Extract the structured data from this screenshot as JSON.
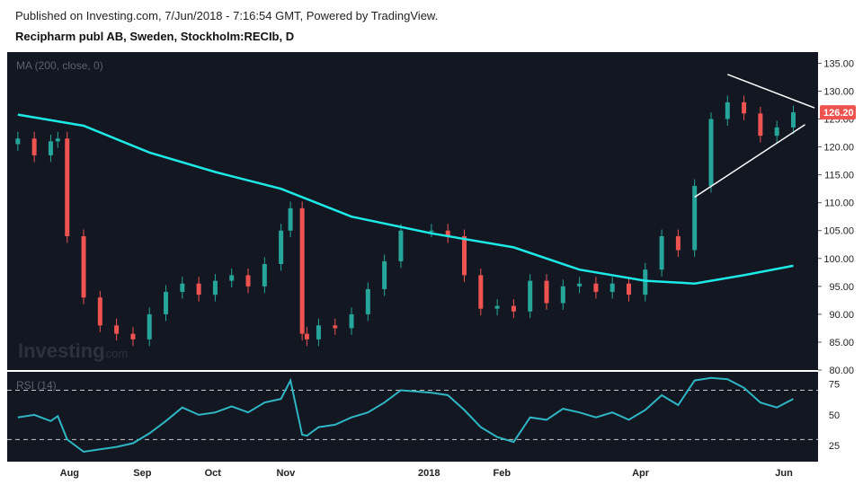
{
  "header": {
    "published": "Published on Investing.com, 7/Jun/2018 - 7:16:54 GMT, Powered by TradingView.",
    "title": "Recipharm publ AB, Sweden, Stockholm:RECIb, D"
  },
  "watermark": {
    "brand": "Investing",
    "suffix": ".com"
  },
  "colors": {
    "background": "#131722",
    "up": "#26a69a",
    "down": "#ef5350",
    "ma": "#1de9e6",
    "rsi": "#2fb6c4",
    "trendline": "#ffffff",
    "last_price_box": "#ef5350"
  },
  "chart_data": [
    {
      "type": "candlestick",
      "panel": "price",
      "legend": "MA (200, close, 0)",
      "ylim": [
        80,
        137
      ],
      "yticks": [
        "80.00",
        "85.00",
        "90.00",
        "95.00",
        "100.00",
        "105.00",
        "110.00",
        "115.00",
        "120.00",
        "125.00",
        "130.00",
        "135.00"
      ],
      "xticks": [
        "Aug",
        "Sep",
        "Oct",
        "Nov",
        "2018",
        "Feb",
        "Apr",
        "Jun"
      ],
      "last_price": "126.20",
      "series": [
        {
          "name": "Price",
          "x": [
            "Jul 10",
            "Jul 17",
            "Jul 24",
            "Jul 27",
            "Jul 31",
            "Aug 7",
            "Aug 14",
            "Aug 21",
            "Aug 28",
            "Sep 4",
            "Sep 11",
            "Sep 18",
            "Sep 25",
            "Oct 2",
            "Oct 9",
            "Oct 16",
            "Oct 23",
            "Oct 30",
            "Nov 3",
            "Nov 8",
            "Nov 10",
            "Nov 15",
            "Nov 22",
            "Nov 29",
            "Dec 6",
            "Dec 13",
            "Dec 20",
            "Jan 2",
            "Jan 9",
            "Jan 16",
            "Jan 23",
            "Jan 30",
            "Feb 6",
            "Feb 13",
            "Feb 20",
            "Feb 27",
            "Mar 6",
            "Mar 13",
            "Mar 20",
            "Mar 27",
            "Apr 3",
            "Apr 10",
            "Apr 17",
            "Apr 24",
            "May 1",
            "May 8",
            "May 15",
            "May 22",
            "May 29",
            "Jun 5"
          ],
          "close": [
            121.5,
            118.5,
            121.0,
            121.5,
            104.0,
            93.0,
            88.0,
            86.5,
            85.5,
            90.0,
            94.0,
            95.5,
            93.5,
            96.0,
            97.0,
            95.0,
            99.0,
            105.0,
            109.0,
            86.5,
            85.5,
            88.0,
            87.5,
            90.0,
            94.5,
            99.5,
            105.0,
            105.0,
            104.0,
            97.0,
            91.0,
            91.5,
            90.5,
            96.0,
            92.0,
            95.0,
            95.5,
            94.0,
            95.5,
            93.5,
            98.0,
            104.0,
            101.5,
            113.0,
            125.0,
            128.0,
            126.0,
            122.0,
            123.5,
            126.2
          ]
        },
        {
          "name": "MA (200, close, 0)",
          "x": [
            "Jul 10",
            "Aug 7",
            "Sep 4",
            "Oct 2",
            "Oct 30",
            "Nov 29",
            "Jan 2",
            "Feb 6",
            "Mar 6",
            "Apr 3",
            "Apr 24",
            "May 15",
            "Jun 5"
          ],
          "y": [
            125.8,
            123.8,
            119.0,
            115.5,
            112.5,
            107.5,
            104.5,
            102.0,
            98.0,
            96.0,
            95.5,
            97.0,
            98.7
          ]
        }
      ]
    },
    {
      "type": "line",
      "panel": "rsi",
      "legend": "RSI (14)",
      "ylim": [
        12,
        85
      ],
      "yticks": [
        "25",
        "50",
        "75"
      ],
      "reference_lines": [
        70,
        30
      ],
      "series": [
        {
          "name": "RSI (14)",
          "x": [
            "Jul 10",
            "Jul 17",
            "Jul 24",
            "Jul 27",
            "Jul 31",
            "Aug 7",
            "Aug 14",
            "Aug 21",
            "Aug 28",
            "Sep 4",
            "Sep 11",
            "Sep 18",
            "Sep 25",
            "Oct 2",
            "Oct 9",
            "Oct 16",
            "Oct 23",
            "Oct 30",
            "Nov 3",
            "Nov 8",
            "Nov 10",
            "Nov 15",
            "Nov 22",
            "Nov 29",
            "Dec 6",
            "Dec 13",
            "Dec 20",
            "Jan 2",
            "Jan 9",
            "Jan 16",
            "Jan 23",
            "Jan 30",
            "Feb 6",
            "Feb 13",
            "Feb 20",
            "Feb 27",
            "Mar 6",
            "Mar 13",
            "Mar 20",
            "Mar 27",
            "Apr 3",
            "Apr 10",
            "Apr 17",
            "Apr 24",
            "May 1",
            "May 8",
            "May 15",
            "May 22",
            "May 29",
            "Jun 5"
          ],
          "y": [
            48,
            50,
            45,
            49,
            30,
            20,
            22,
            24,
            27,
            35,
            45,
            56,
            50,
            52,
            57,
            52,
            60,
            63,
            78,
            34,
            33,
            40,
            42,
            48,
            52,
            60,
            70,
            68,
            66,
            54,
            40,
            32,
            28,
            48,
            46,
            55,
            52,
            48,
            52,
            46,
            54,
            66,
            58,
            78,
            80,
            79,
            72,
            60,
            56,
            63
          ]
        }
      ]
    }
  ]
}
